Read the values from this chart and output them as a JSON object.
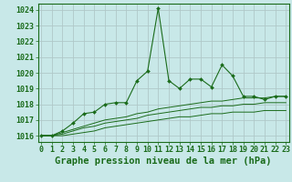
{
  "title": "Graphe pression niveau de la mer (hPa)",
  "x_labels": [
    "0",
    "1",
    "2",
    "3",
    "4",
    "5",
    "6",
    "7",
    "8",
    "9",
    "10",
    "11",
    "12",
    "13",
    "14",
    "15",
    "16",
    "17",
    "18",
    "19",
    "20",
    "21",
    "22",
    "23"
  ],
  "x_values": [
    0,
    1,
    2,
    3,
    4,
    5,
    6,
    7,
    8,
    9,
    10,
    11,
    12,
    13,
    14,
    15,
    16,
    17,
    18,
    19,
    20,
    21,
    22,
    23
  ],
  "main_line": [
    1016.0,
    1016.0,
    1016.3,
    1016.8,
    1017.4,
    1017.5,
    1018.0,
    1018.1,
    1018.1,
    1019.5,
    1020.1,
    1024.1,
    1019.5,
    1019.0,
    1019.6,
    1019.6,
    1019.1,
    1020.5,
    1019.8,
    1018.5,
    1018.5,
    1018.3,
    1018.5,
    1018.5
  ],
  "line2": [
    1016.0,
    1016.0,
    1016.2,
    1016.4,
    1016.6,
    1016.8,
    1017.0,
    1017.1,
    1017.2,
    1017.4,
    1017.5,
    1017.7,
    1017.8,
    1017.9,
    1018.0,
    1018.1,
    1018.2,
    1018.2,
    1018.3,
    1018.4,
    1018.4,
    1018.4,
    1018.5,
    1018.5
  ],
  "line3": [
    1016.0,
    1016.0,
    1016.1,
    1016.3,
    1016.5,
    1016.6,
    1016.8,
    1016.9,
    1017.0,
    1017.1,
    1017.3,
    1017.4,
    1017.5,
    1017.6,
    1017.7,
    1017.8,
    1017.8,
    1017.9,
    1017.9,
    1018.0,
    1018.0,
    1018.1,
    1018.1,
    1018.1
  ],
  "line4": [
    1016.0,
    1016.0,
    1016.0,
    1016.1,
    1016.2,
    1016.3,
    1016.5,
    1016.6,
    1016.7,
    1016.8,
    1016.9,
    1017.0,
    1017.1,
    1017.2,
    1017.2,
    1017.3,
    1017.4,
    1017.4,
    1017.5,
    1017.5,
    1017.5,
    1017.6,
    1017.6,
    1017.6
  ],
  "ylim": [
    1015.6,
    1024.4
  ],
  "yticks": [
    1016,
    1017,
    1018,
    1019,
    1020,
    1021,
    1022,
    1023,
    1024
  ],
  "line_color": "#1a6b1a",
  "bg_color": "#c8e8e8",
  "grid_color": "#b0c8c8",
  "text_color": "#1a6b1a",
  "title_fontsize": 7.5,
  "tick_fontsize": 6.0
}
